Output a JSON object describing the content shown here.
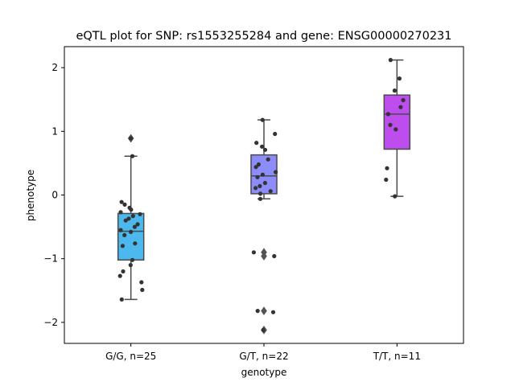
{
  "chart_data": {
    "type": "box",
    "title": "eQTL plot for SNP: rs1553255284 and gene: ENSG00000270231",
    "xlabel": "genotype",
    "ylabel": "phenotype",
    "ylim": [
      -2.33,
      2.33
    ],
    "yticks": [
      2,
      1,
      0,
      -1,
      -2
    ],
    "ytick_labels": [
      "2",
      "1",
      "0",
      "−1",
      "−2"
    ],
    "grid": false,
    "categories": [
      "G/G, n=25",
      "G/T, n=22",
      "T/T, n=11"
    ],
    "colors": [
      "#4cb8ee",
      "#8c8cfb",
      "#bd4ded"
    ],
    "groups": [
      {
        "label": "G/G, n=25",
        "color": "#4cb8ee",
        "box": {
          "q1": -1.02,
          "median": -0.57,
          "q3": -0.29,
          "whisker_low": -1.64,
          "whisker_high": 0.61
        },
        "outliers": [
          0.89
        ],
        "points": [
          0.89,
          0.61,
          -0.11,
          -0.15,
          -0.2,
          -0.23,
          -0.27,
          -0.3,
          -0.33,
          -0.37,
          -0.4,
          -0.46,
          -0.5,
          -0.55,
          -0.58,
          -0.63,
          -0.76,
          -0.8,
          -1.02,
          -1.1,
          -1.2,
          -1.27,
          -1.37,
          -1.49,
          -1.64
        ]
      },
      {
        "label": "G/T, n=22",
        "color": "#8c8cfb",
        "box": {
          "q1": 0.02,
          "median": 0.3,
          "q3": 0.63,
          "whisker_low": -0.06,
          "whisker_high": 1.18
        },
        "outliers": [
          -0.9,
          -0.96,
          -1.82,
          -2.12
        ],
        "points": [
          1.18,
          0.96,
          0.82,
          0.76,
          0.71,
          0.56,
          0.48,
          0.44,
          0.36,
          0.32,
          0.28,
          0.19,
          0.14,
          0.11,
          0.06,
          0.02,
          -0.06,
          -0.9,
          -0.96,
          -1.82,
          -1.84,
          -2.12
        ]
      },
      {
        "label": "T/T, n=11",
        "color": "#bd4ded",
        "box": {
          "q1": 0.72,
          "median": 1.27,
          "q3": 1.57,
          "whisker_low": -0.02,
          "whisker_high": 2.12
        },
        "outliers": [],
        "points": [
          2.12,
          1.83,
          1.64,
          1.49,
          1.38,
          1.27,
          1.1,
          1.03,
          0.42,
          0.24,
          -0.02
        ]
      }
    ]
  }
}
